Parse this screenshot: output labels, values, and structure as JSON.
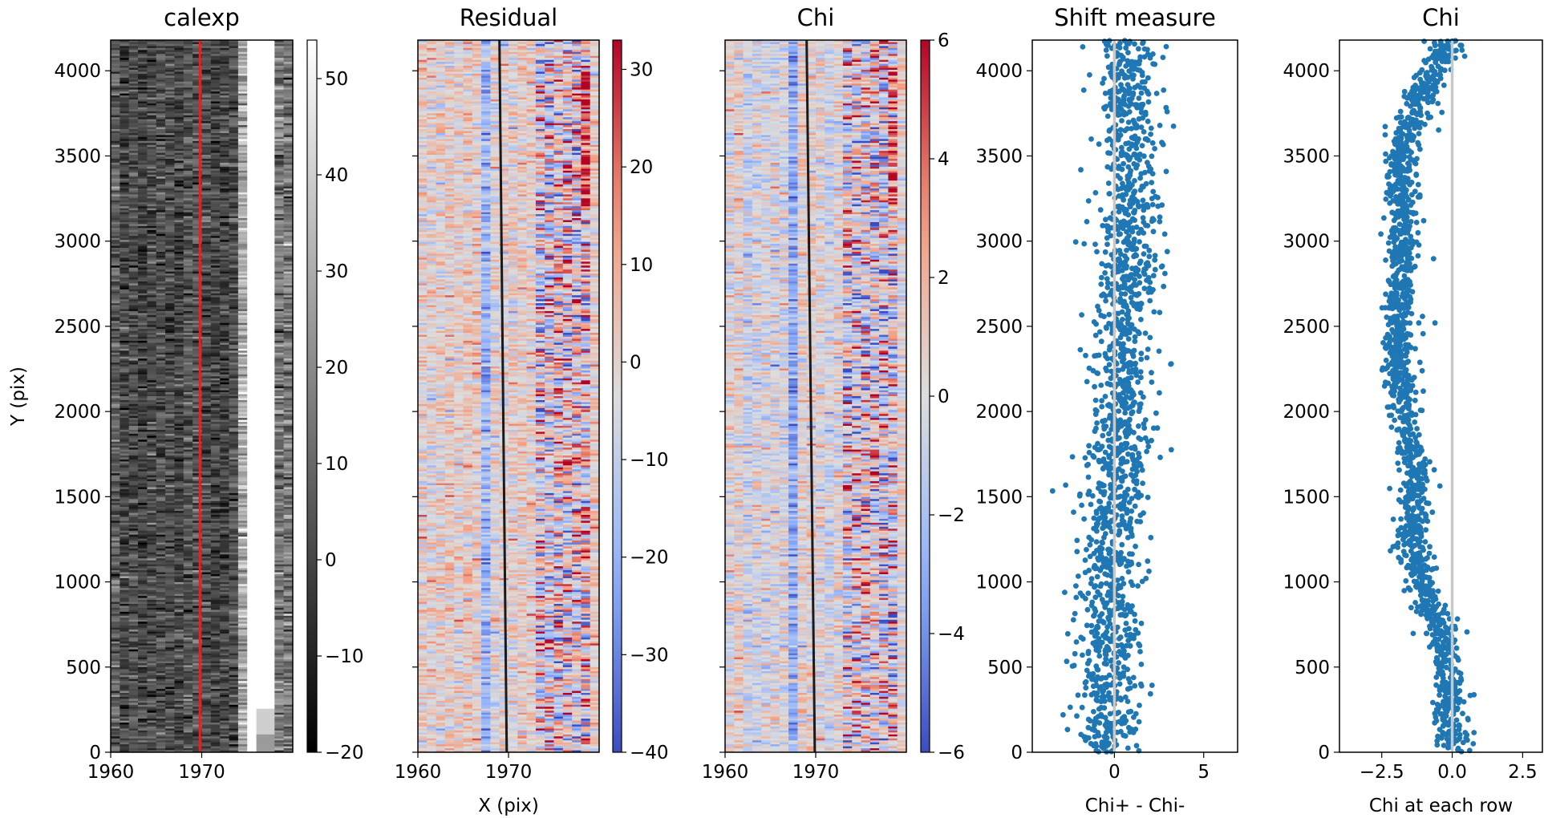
{
  "figure": {
    "panels": [
      "calexp",
      "Residual",
      "Chi",
      "Shift measure",
      "Chi"
    ]
  },
  "chart_data": [
    {
      "type": "heatmap",
      "title": "calexp",
      "xlabel": "",
      "ylabel": "Y (pix)",
      "xlim": [
        1960,
        1980
      ],
      "ylim": [
        0,
        4180
      ],
      "xticks": [
        1960,
        1970
      ],
      "yticks": [
        0,
        500,
        1000,
        1500,
        2000,
        2500,
        3000,
        3500,
        4000
      ],
      "colormap": "gray",
      "colorbar": {
        "range": [
          -20,
          54
        ],
        "ticks": [
          -20,
          -10,
          0,
          10,
          20,
          30,
          40,
          50
        ]
      },
      "overlay_line": {
        "color": "#e8211e",
        "x_at_y0": 1969.8,
        "x_at_ytop": 1969.8
      },
      "bright_region_x": [
        1974,
        1978.5
      ]
    },
    {
      "type": "heatmap",
      "title": "Residual",
      "xlabel": "X (pix)",
      "ylabel": "",
      "xlim": [
        1960,
        1980
      ],
      "ylim": [
        0,
        4180
      ],
      "xticks": [
        1960,
        1970
      ],
      "colormap": "coolwarm",
      "colorbar": {
        "range": [
          -40,
          33
        ],
        "ticks": [
          -40,
          -30,
          -20,
          -10,
          0,
          10,
          20,
          30
        ]
      },
      "overlay_line": {
        "color": "#1a1a1a",
        "x_at_y0": 1969.8,
        "x_at_ytop": 1969.0
      }
    },
    {
      "type": "heatmap",
      "title": "Chi",
      "xlabel": "",
      "ylabel": "",
      "xlim": [
        1960,
        1980
      ],
      "ylim": [
        0,
        4180
      ],
      "xticks": [
        1960,
        1970
      ],
      "colormap": "coolwarm",
      "colorbar": {
        "range": [
          -6,
          6
        ],
        "ticks": [
          -6,
          -4,
          -2,
          0,
          2,
          4,
          6
        ]
      },
      "overlay_line": {
        "color": "#1a1a1a",
        "x_at_y0": 1969.9,
        "x_at_ytop": 1969.0
      }
    },
    {
      "type": "scatter",
      "title": "Shift measure",
      "xlabel": "Chi+ - Chi-",
      "ylabel": "",
      "xlim": [
        -4.6,
        6.9
      ],
      "ylim": [
        0,
        4180
      ],
      "xticks": [
        0,
        5
      ],
      "yticks": [
        0,
        500,
        1000,
        1500,
        2000,
        2500,
        3000,
        3500,
        4000
      ],
      "point_color": "#1f77b4",
      "vline": {
        "x": 0,
        "color": "#c8c8c8"
      },
      "trend": [
        [
          0,
          -0.3
        ],
        [
          1000,
          -0.3
        ],
        [
          2000,
          0.4
        ],
        [
          3000,
          0.8
        ],
        [
          4180,
          0.7
        ]
      ],
      "spread": 1.1,
      "n_points": 4180
    },
    {
      "type": "scatter",
      "title": "Chi",
      "xlabel": "Chi at each row",
      "ylabel": "",
      "xlim": [
        -4.0,
        3.2
      ],
      "ylim": [
        0,
        4180
      ],
      "xticks": [
        -2.5,
        0.0,
        2.5
      ],
      "tick_labels": [
        "−2.5",
        "0.0",
        "2.5"
      ],
      "yticks": [
        0,
        500,
        1000,
        1500,
        2000,
        2500,
        3000,
        3500,
        4000
      ],
      "point_color": "#1f77b4",
      "vline": {
        "x": 0,
        "color": "#c8c8c8"
      },
      "trend": [
        [
          0,
          0.1
        ],
        [
          500,
          -0.25
        ],
        [
          800,
          -0.65
        ],
        [
          1200,
          -1.45
        ],
        [
          1700,
          -1.3
        ],
        [
          2300,
          -2.0
        ],
        [
          3000,
          -1.75
        ],
        [
          3500,
          -1.8
        ],
        [
          3800,
          -1.25
        ],
        [
          4180,
          -0.2
        ]
      ],
      "spread": 0.35,
      "n_points": 4180
    }
  ]
}
